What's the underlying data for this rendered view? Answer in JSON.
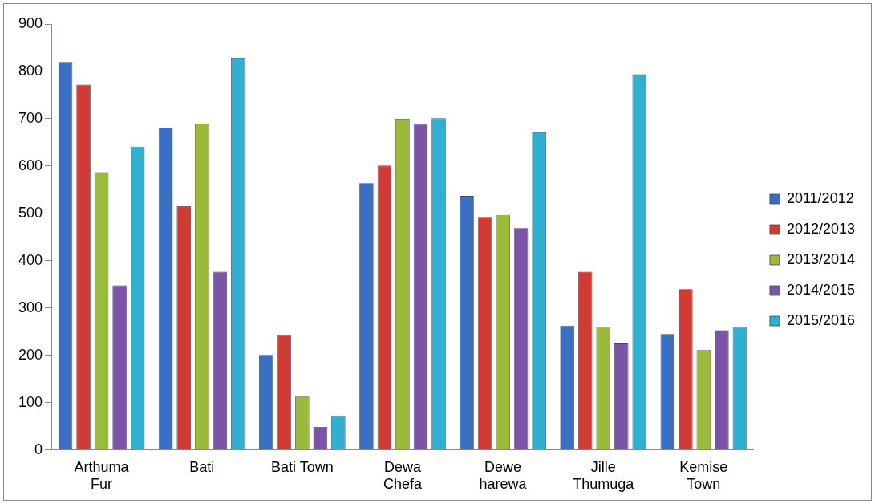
{
  "chart_data": {
    "type": "bar",
    "categories": [
      "Arthuma Fur",
      "Bati",
      "Bati Town",
      "Dewa Chefa",
      "Dewe harewa",
      "Jille Thumuga",
      "Kemise Town"
    ],
    "series": [
      {
        "name": "2011/2012",
        "color": "#3a6fc4",
        "values": [
          820,
          681,
          201,
          564,
          537,
          263,
          245
        ]
      },
      {
        "name": "2012/2013",
        "color": "#d23a35",
        "values": [
          772,
          515,
          243,
          601,
          491,
          377,
          340
        ]
      },
      {
        "name": "2013/2014",
        "color": "#9aba3a",
        "values": [
          587,
          690,
          113,
          700,
          497,
          260,
          211
        ]
      },
      {
        "name": "2014/2015",
        "color": "#7b54a8",
        "values": [
          348,
          377,
          49,
          689,
          469,
          225,
          253
        ]
      },
      {
        "name": "2015/2016",
        "color": "#2fb0d0",
        "values": [
          641,
          829,
          73,
          701,
          671,
          794,
          260
        ]
      }
    ],
    "ylim": [
      0,
      900
    ],
    "yticks": [
      0,
      100,
      200,
      300,
      400,
      500,
      600,
      700,
      800,
      900
    ],
    "grid": false,
    "legend": "right"
  }
}
